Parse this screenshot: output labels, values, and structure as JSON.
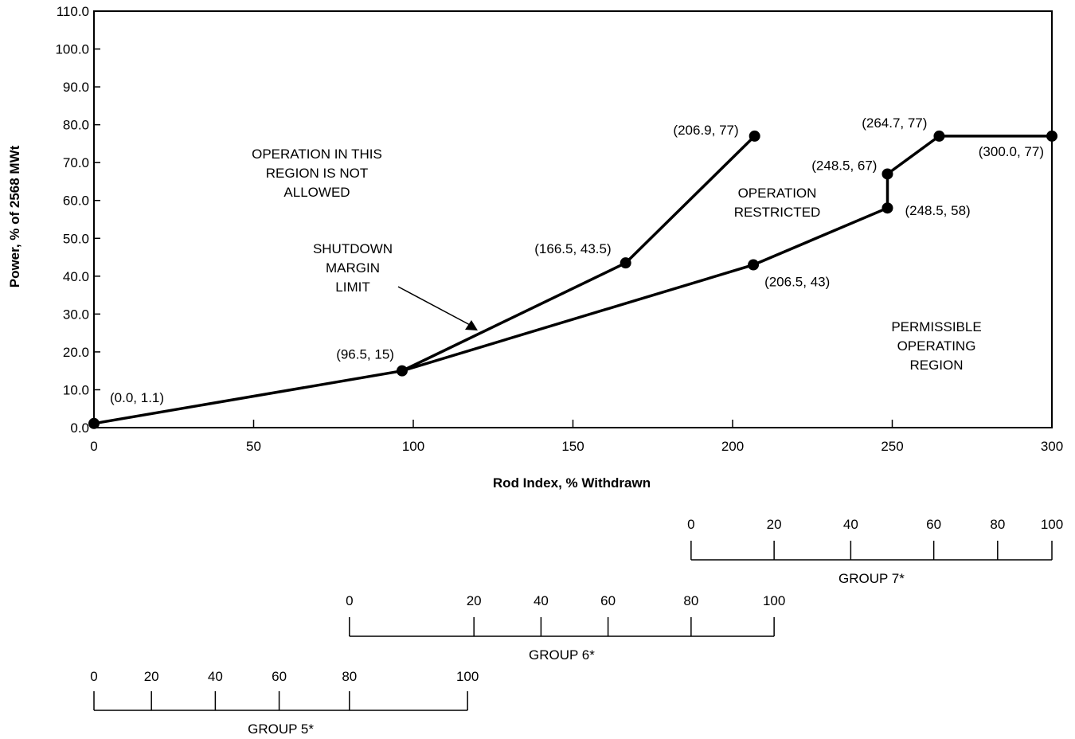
{
  "chart_data": {
    "type": "line",
    "xlabel": "Rod Index, % Withdrawn",
    "ylabel": "Power, % of 2568 MWt",
    "xlim": [
      0,
      300
    ],
    "ylim": [
      0,
      110
    ],
    "x_ticks": [
      0,
      50,
      100,
      150,
      200,
      250,
      300
    ],
    "y_ticks": [
      "0.0",
      "10.0",
      "20.0",
      "30.0",
      "40.0",
      "50.0",
      "60.0",
      "70.0",
      "80.0",
      "90.0",
      "100.0",
      "110.0"
    ],
    "grid": false,
    "series": [
      {
        "points": [
          [
            0.0,
            1.1
          ],
          [
            96.5,
            15
          ],
          [
            166.5,
            43.5
          ],
          [
            206.9,
            77
          ]
        ]
      },
      {
        "points": [
          [
            96.5,
            15
          ],
          [
            206.5,
            43
          ],
          [
            248.5,
            58
          ],
          [
            248.5,
            67
          ],
          [
            264.7,
            77
          ],
          [
            300.0,
            77
          ]
        ]
      }
    ],
    "point_labels": [
      {
        "text": "(0.0, 1.1)",
        "x": 0.0,
        "y": 1.1
      },
      {
        "text": "(96.5, 15)",
        "x": 96.5,
        "y": 15
      },
      {
        "text": "(166.5, 43.5)",
        "x": 166.5,
        "y": 43.5
      },
      {
        "text": "(206.9, 77)",
        "x": 206.9,
        "y": 77
      },
      {
        "text": "(206.5, 43)",
        "x": 206.5,
        "y": 43
      },
      {
        "text": "(248.5, 58)",
        "x": 248.5,
        "y": 58
      },
      {
        "text": "(248.5, 67)",
        "x": 248.5,
        "y": 67
      },
      {
        "text": "(264.7, 77)",
        "x": 264.7,
        "y": 77
      },
      {
        "text": "(300.0, 77)",
        "x": 300.0,
        "y": 77
      }
    ],
    "annotations": [
      {
        "lines": [
          "OPERATION IN THIS",
          "REGION IS NOT",
          "ALLOWED"
        ]
      },
      {
        "lines": [
          "OPERATION",
          "RESTRICTED"
        ]
      },
      {
        "lines": [
          "SHUTDOWN",
          "MARGIN",
          "LIMIT"
        ]
      },
      {
        "lines": [
          "PERMISSIBLE",
          "OPERATING",
          "REGION"
        ]
      }
    ],
    "group_scales": [
      {
        "name": "GROUP 7*",
        "rod_index_range": [
          187,
          300
        ],
        "ticks": [
          0,
          20,
          40,
          60,
          80,
          100
        ],
        "tick_rod_index": [
          187,
          213,
          237,
          263,
          283,
          300
        ]
      },
      {
        "name": "GROUP 6*",
        "rod_index_range": [
          80,
          213
        ],
        "ticks": [
          0,
          20,
          40,
          60,
          80,
          100
        ],
        "tick_rod_index": [
          80,
          119,
          140,
          161,
          187,
          213
        ]
      },
      {
        "name": "GROUP 5*",
        "rod_index_range": [
          0,
          117
        ],
        "ticks": [
          0,
          20,
          40,
          60,
          80,
          100
        ],
        "tick_rod_index": [
          0,
          18,
          38,
          58,
          80,
          117
        ]
      }
    ]
  }
}
